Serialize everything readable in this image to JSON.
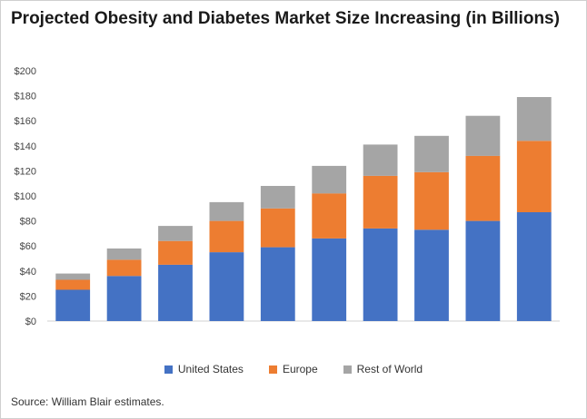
{
  "chart_data": {
    "type": "bar",
    "stacked": true,
    "title": "Projected Obesity and Diabetes Market Size Increasing (in Billions)",
    "xlabel": "",
    "ylabel": "",
    "ylim": [
      0,
      200
    ],
    "yticks": [
      "$0",
      "$20",
      "$40",
      "$60",
      "$80",
      "$100",
      "$120",
      "$140",
      "$160",
      "$180",
      "$200"
    ],
    "categories": [
      "",
      "",
      "",
      "",
      "",
      "",
      "",
      "",
      "",
      ""
    ],
    "series": [
      {
        "name": "United States",
        "color": "#4472c4",
        "values": [
          25,
          36,
          45,
          55,
          59,
          66,
          74,
          73,
          80,
          87
        ]
      },
      {
        "name": "Europe",
        "color": "#ed7d31",
        "values": [
          8,
          13,
          19,
          25,
          31,
          36,
          42,
          46,
          52,
          57
        ]
      },
      {
        "name": "Rest of World",
        "color": "#a5a5a5",
        "values": [
          5,
          9,
          12,
          15,
          18,
          22,
          25,
          29,
          32,
          35
        ]
      }
    ],
    "grid": false,
    "legend_position": "bottom"
  },
  "source": "Source: William Blair estimates."
}
